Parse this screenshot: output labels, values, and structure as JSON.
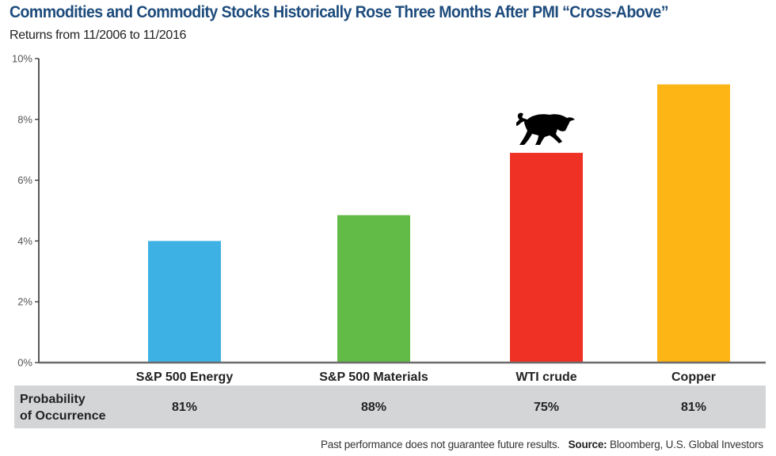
{
  "chart_data": {
    "type": "bar",
    "title": "Commodities and Commodity Stocks Historically Rose Three Months After PMI “Cross-Above”",
    "subtitle": "Returns from 11/2006 to 11/2016",
    "xlabel": "",
    "ylabel": "",
    "ylim": [
      0,
      10
    ],
    "yticks": [
      0,
      2,
      4,
      6,
      8,
      10
    ],
    "ytick_labels": [
      "0%",
      "2%",
      "4%",
      "6%",
      "8%",
      "10%"
    ],
    "grid": false,
    "categories": [
      "S&P 500 Energy",
      "S&P 500 Materials",
      "WTI crude",
      "Copper"
    ],
    "values": [
      4.0,
      4.85,
      6.9,
      9.15
    ],
    "colors": [
      "#3eb1e4",
      "#62bb46",
      "#ee3124",
      "#fdb515"
    ],
    "annotation": {
      "icon": "bull-icon",
      "category": "WTI crude"
    },
    "table": {
      "row_label": [
        "Probability",
        "of Occurrence"
      ],
      "values": [
        "81%",
        "88%",
        "75%",
        "81%"
      ]
    }
  },
  "footer": {
    "disclaimer": "Past performance does not guarantee future results.",
    "source_label": "Source:",
    "source_text": "Bloomberg, U.S. Global Investors"
  }
}
